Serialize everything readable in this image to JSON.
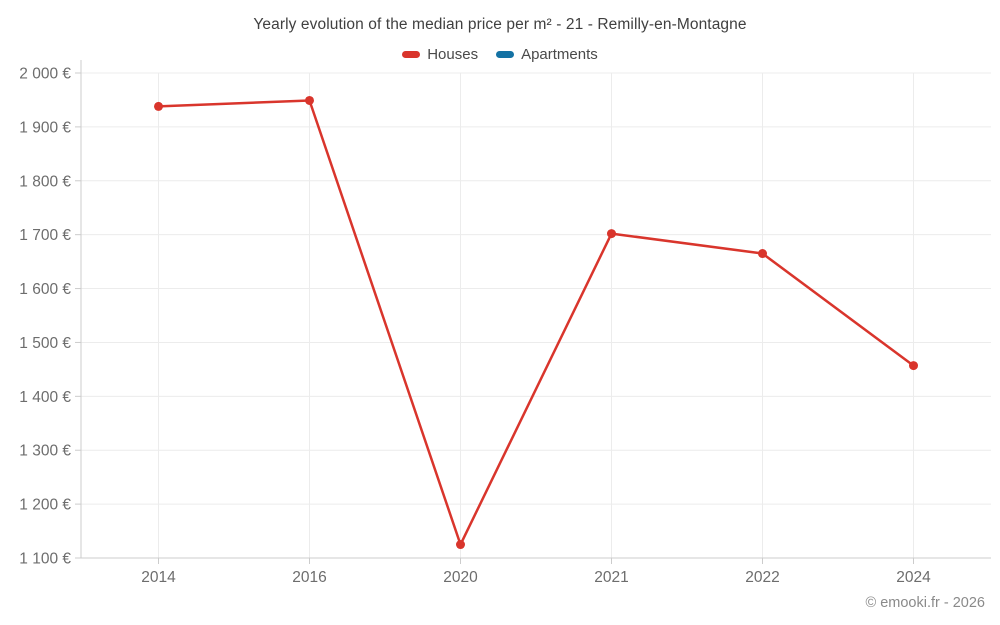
{
  "title": "Yearly evolution of the median price per m² - 21 - Remilly-en-Montagne",
  "footer": "© emooki.fr - 2026",
  "legend": {
    "items": [
      {
        "label": "Houses",
        "color": "#d9352c"
      },
      {
        "label": "Apartments",
        "color": "#1472a4"
      }
    ]
  },
  "colors": {
    "houses": "#d9352c",
    "apartments": "#1472a4",
    "grid": "#ececec",
    "axis": "#cccccc",
    "tick_text": "#6d6d6d",
    "title_text": "#404040",
    "footer_text": "#8a8a8a",
    "background": "#ffffff"
  },
  "chart_data": {
    "type": "line",
    "title": "Yearly evolution of the median price per m² - 21 - Remilly-en-Montagne",
    "categories": [
      "2014",
      "2016",
      "2020",
      "2021",
      "2022",
      "2024"
    ],
    "series": [
      {
        "name": "Houses",
        "color": "#d9352c",
        "values": [
          1938,
          1949,
          1125,
          1702,
          1665,
          1457
        ]
      },
      {
        "name": "Apartments",
        "color": "#1472a4",
        "values": []
      }
    ],
    "xlabel": "",
    "ylabel": "",
    "ylim": [
      1100,
      2000
    ],
    "y_ticks": [
      1100,
      1200,
      1300,
      1400,
      1500,
      1600,
      1700,
      1800,
      1900,
      2000
    ],
    "y_tick_labels": [
      "1 100 €",
      "1 200 €",
      "1 300 €",
      "1 400 €",
      "1 500 €",
      "1 600 €",
      "1 700 €",
      "1 800 €",
      "1 900 €",
      "2 000 €"
    ],
    "y_tick_suffix": " €",
    "grid": true,
    "legend_position": "top",
    "marker_radius": 4.5,
    "line_width": 2.5
  }
}
